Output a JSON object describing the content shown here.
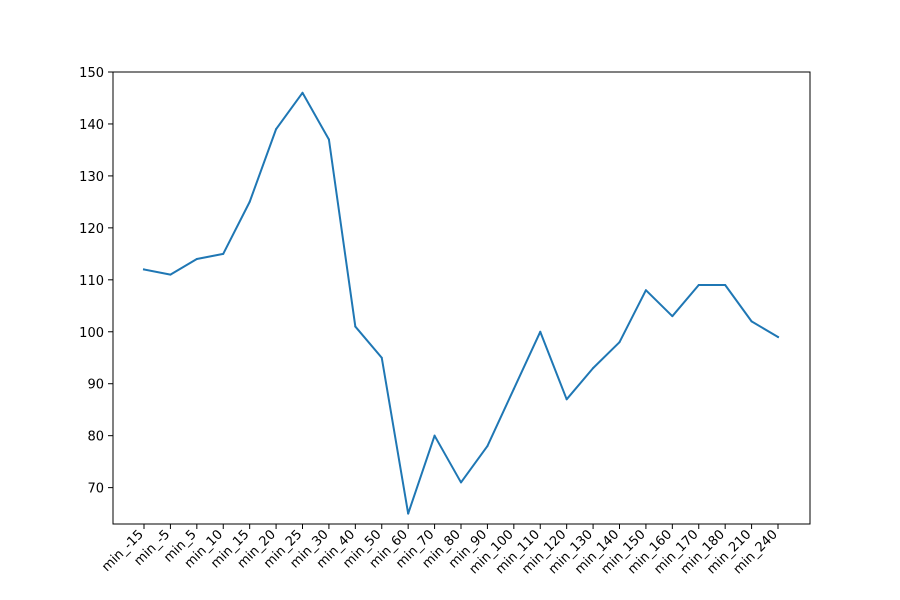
{
  "chart_data": {
    "type": "line",
    "title": "",
    "xlabel": "",
    "ylabel": "",
    "categories": [
      "min_-15",
      "min_-5",
      "min_5",
      "min_10",
      "min_15",
      "min_20",
      "min_25",
      "min_30",
      "min_40",
      "min_50",
      "min_60",
      "min_70",
      "min_80",
      "min_90",
      "min_100",
      "min_110",
      "min_120",
      "min_130",
      "min_140",
      "min_150",
      "min_160",
      "min_170",
      "min_180",
      "min_210",
      "min_240"
    ],
    "series": [
      {
        "values": [
          112,
          111,
          114,
          115,
          125,
          139,
          146,
          137,
          101,
          95,
          65,
          80,
          71,
          78,
          89,
          100,
          87,
          93,
          98,
          108,
          103,
          109,
          109,
          102,
          99
        ],
        "color": "#1f77b4"
      }
    ],
    "ylim": [
      63,
      150
    ],
    "yticks": [
      70,
      80,
      90,
      100,
      110,
      120,
      130,
      140,
      150
    ],
    "grid": false,
    "legend": "none"
  }
}
